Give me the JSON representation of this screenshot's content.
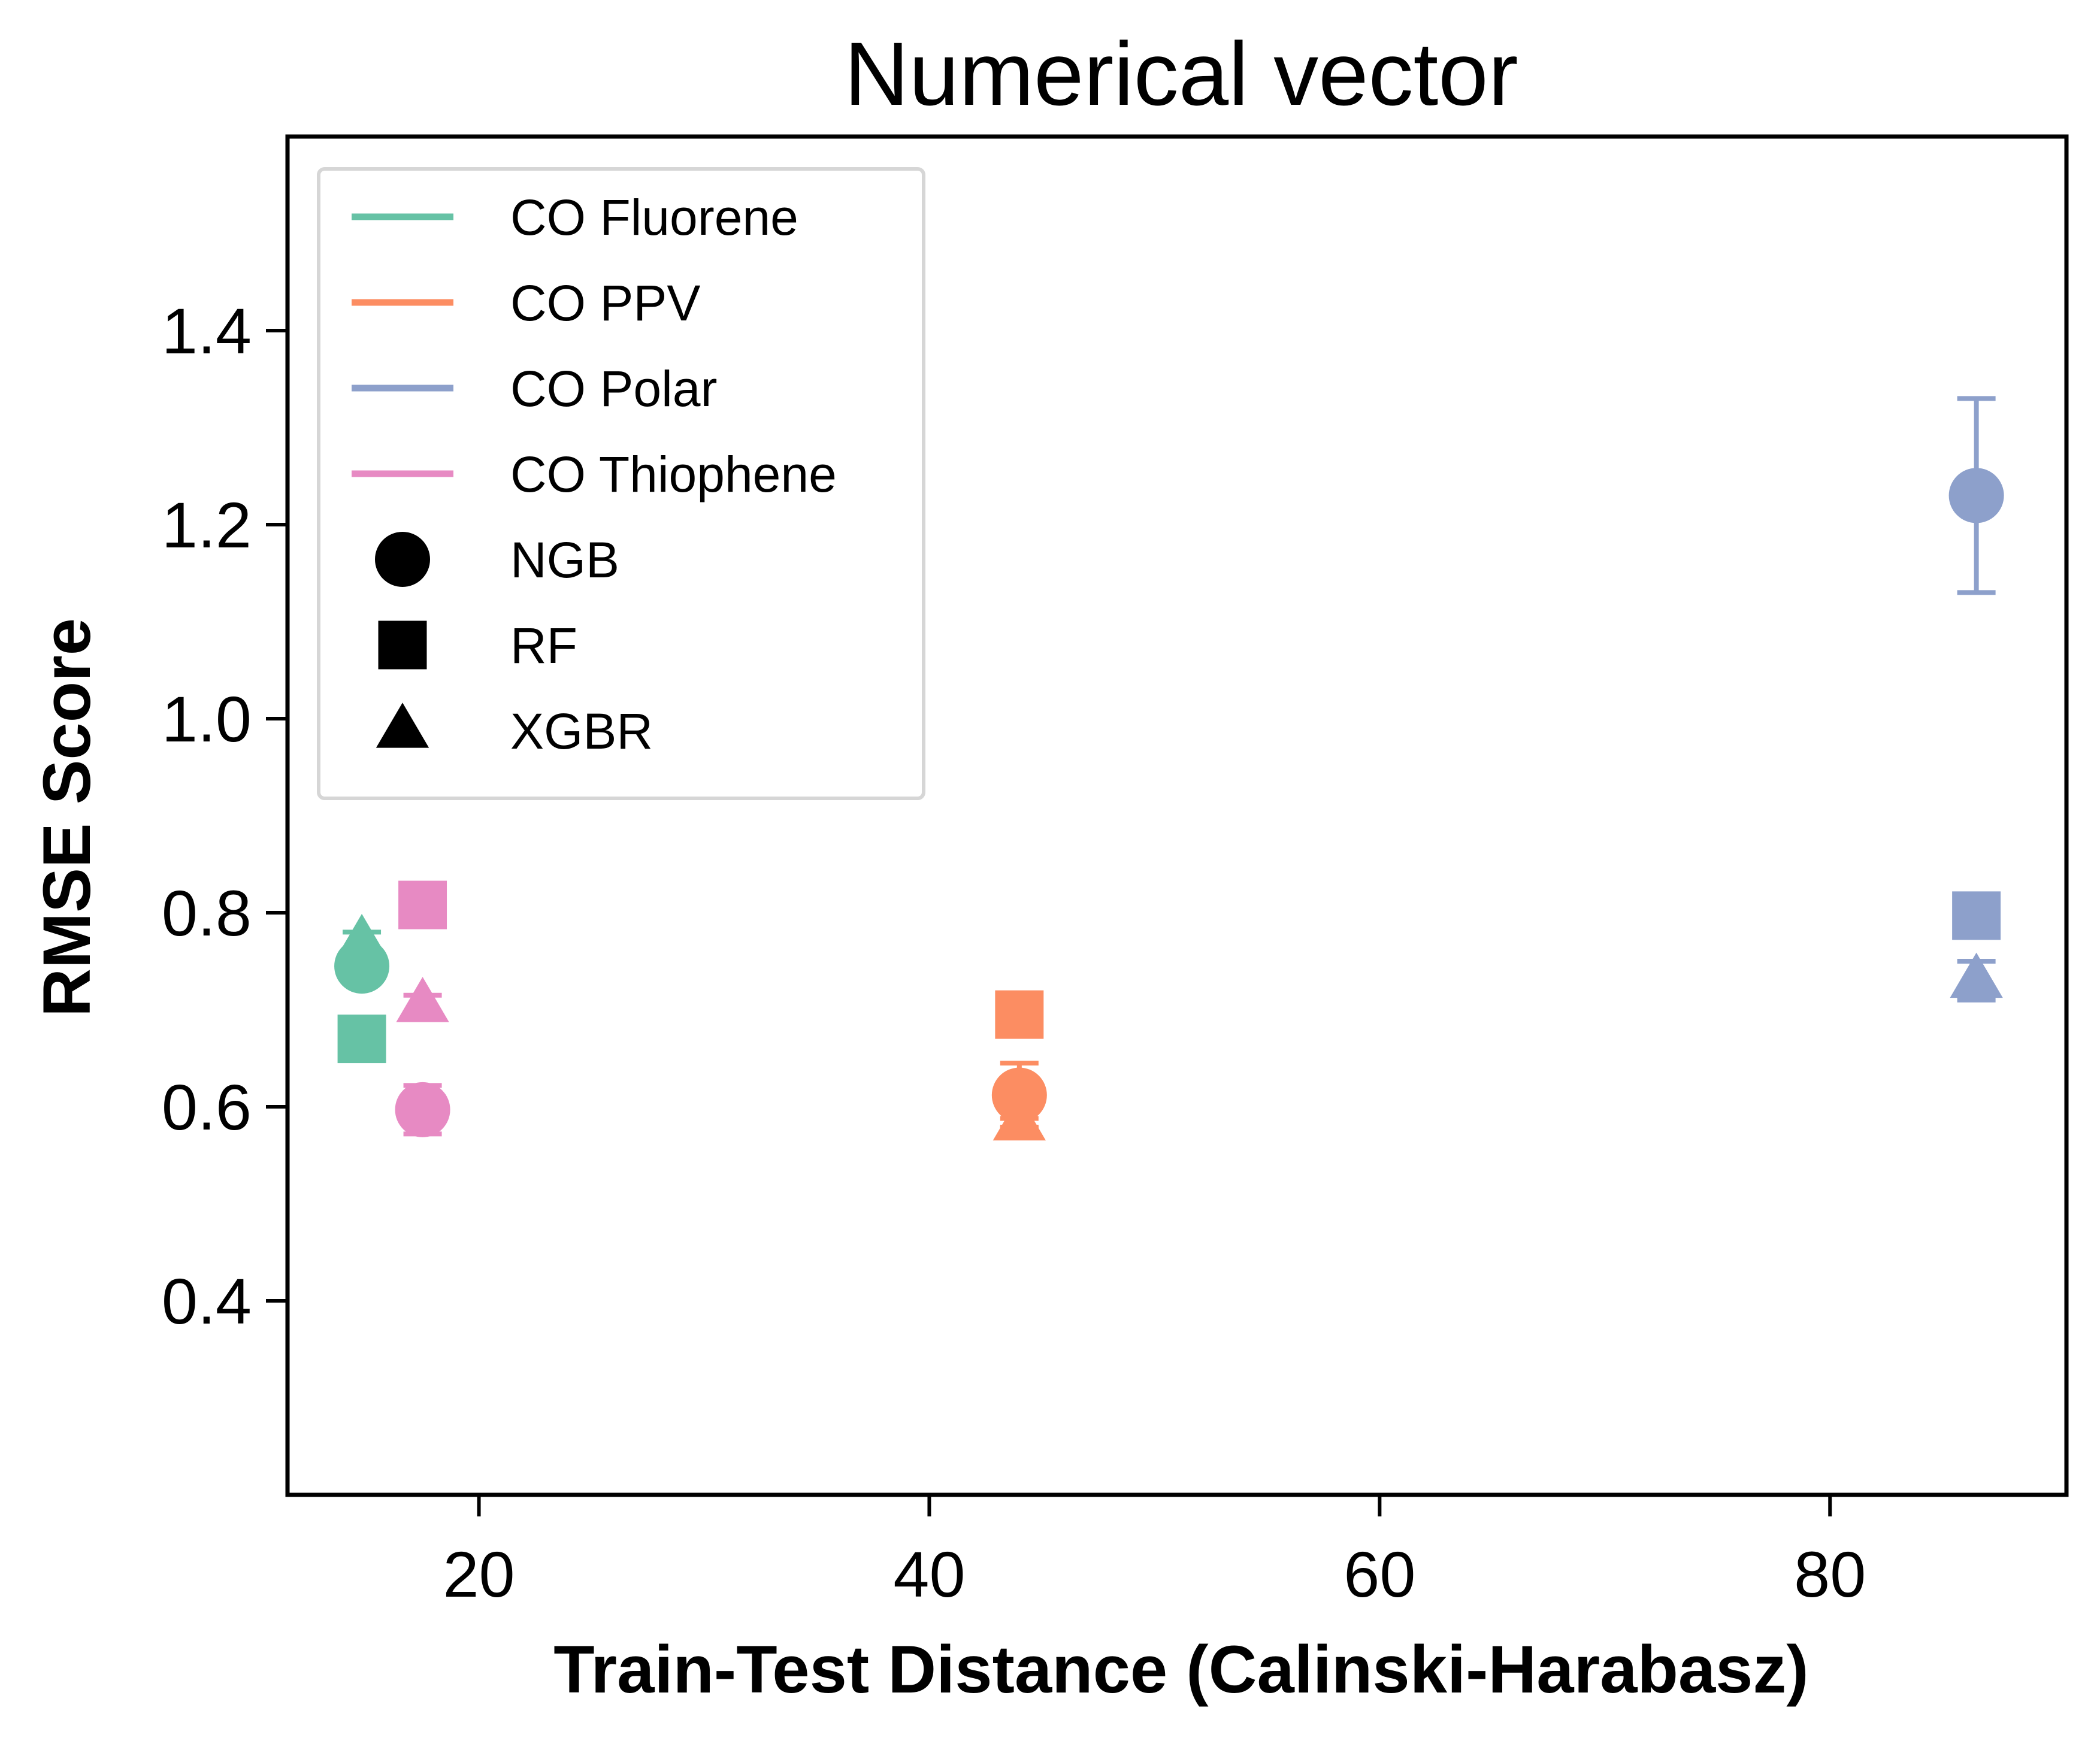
{
  "chart_data": {
    "type": "scatter",
    "title": "Numerical vector",
    "xlabel": "Train-Test Distance (Calinski-Harabasz)",
    "ylabel": "RMSE Score",
    "xlim": [
      11.5,
      90.5
    ],
    "ylim": [
      0.2,
      1.6
    ],
    "xticks": [
      20,
      40,
      60,
      80
    ],
    "yticks": [
      0.4,
      0.6,
      0.8,
      1.0,
      1.2,
      1.4
    ],
    "xtick_labels": [
      "20",
      "40",
      "60",
      "80"
    ],
    "ytick_labels": [
      "0.4",
      "0.6",
      "0.8",
      "1.0",
      "1.2",
      "1.4"
    ],
    "grid": false,
    "legend_position": "top-left",
    "series": [
      {
        "name": "CO Fluorene",
        "color": "#66c2a5",
        "points": [
          {
            "model": "NGB",
            "x": 14.8,
            "y": 0.745,
            "err": 0.015
          },
          {
            "model": "RF",
            "x": 14.8,
            "y": 0.67,
            "err": 0.0
          },
          {
            "model": "XGBR",
            "x": 14.8,
            "y": 0.77,
            "err": 0.01
          }
        ]
      },
      {
        "name": "CO PPV",
        "color": "#fc8d62",
        "points": [
          {
            "model": "NGB",
            "x": 44.0,
            "y": 0.612,
            "err": 0.033
          },
          {
            "model": "RF",
            "x": 44.0,
            "y": 0.695,
            "err": 0.0
          },
          {
            "model": "XGBR",
            "x": 44.0,
            "y": 0.583,
            "err": 0.005
          }
        ]
      },
      {
        "name": "CO Polar",
        "color": "#8da0cb",
        "points": [
          {
            "model": "NGB",
            "x": 86.5,
            "y": 1.23,
            "err": 0.1
          },
          {
            "model": "RF",
            "x": 86.5,
            "y": 0.797,
            "err": 0.0
          },
          {
            "model": "XGBR",
            "x": 86.5,
            "y": 0.73,
            "err": 0.02
          }
        ]
      },
      {
        "name": "CO Thiophene",
        "color": "#e78ac3",
        "points": [
          {
            "model": "NGB",
            "x": 17.5,
            "y": 0.597,
            "err": 0.025
          },
          {
            "model": "RF",
            "x": 17.5,
            "y": 0.808,
            "err": 0.0
          },
          {
            "model": "XGBR",
            "x": 17.5,
            "y": 0.705,
            "err": 0.01
          }
        ]
      }
    ],
    "models": [
      {
        "name": "NGB",
        "marker": "circle"
      },
      {
        "name": "RF",
        "marker": "square"
      },
      {
        "name": "XGBR",
        "marker": "triangle"
      }
    ]
  }
}
